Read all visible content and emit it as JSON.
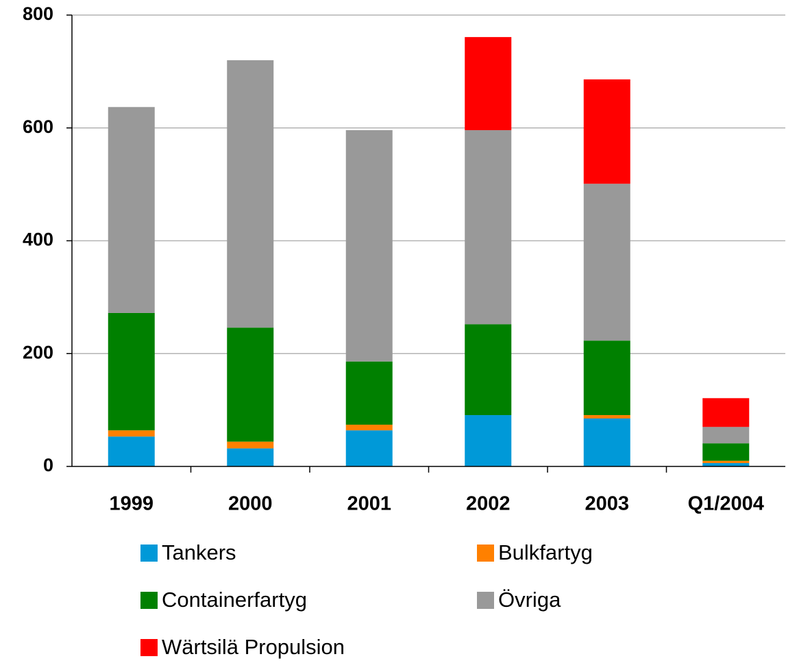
{
  "chart_data": {
    "type": "stacked_bar",
    "categories": [
      "1999",
      "2000",
      "2001",
      "2002",
      "2003",
      "Q1/2004"
    ],
    "series": [
      {
        "name": "Tankers",
        "color": "#0099d8",
        "values": [
          53,
          32,
          64,
          91,
          85,
          6
        ]
      },
      {
        "name": "Bulkfartyg",
        "color": "#ff8000",
        "values": [
          11,
          12,
          10,
          0,
          6,
          4
        ]
      },
      {
        "name": "Containerfartyg",
        "color": "#008000",
        "values": [
          208,
          202,
          112,
          161,
          132,
          31
        ]
      },
      {
        "name": "Övriga",
        "color": "#999999",
        "values": [
          365,
          474,
          410,
          344,
          278,
          29
        ]
      },
      {
        "name": "Wärtsilä Propulsion",
        "color": "#ff0000",
        "values": [
          0,
          0,
          0,
          165,
          185,
          51
        ]
      }
    ],
    "ylim": [
      0,
      800
    ],
    "yticks": [
      0,
      200,
      400,
      600,
      800
    ],
    "grid": true
  }
}
